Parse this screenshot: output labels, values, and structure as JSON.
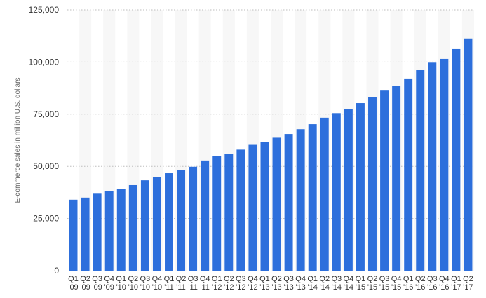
{
  "chart_data": {
    "type": "bar",
    "title": "",
    "xlabel": "",
    "ylabel": "E-commerce sales in million U.S. dollars",
    "ylim": [
      0,
      125000
    ],
    "yticks": [
      "0",
      "25,000",
      "50,000",
      "75,000",
      "100,000",
      "125,000"
    ],
    "ytick_values": [
      0,
      25000,
      50000,
      75000,
      100000,
      125000
    ],
    "grid": true,
    "bar_color": "#2d6fdc",
    "band_color": "#f7f7f7",
    "categories": [
      {
        "q": "Q1",
        "y": "'09"
      },
      {
        "q": "Q2",
        "y": "'09"
      },
      {
        "q": "Q3",
        "y": "'09"
      },
      {
        "q": "Q4",
        "y": "'09"
      },
      {
        "q": "Q1",
        "y": "'10"
      },
      {
        "q": "Q2",
        "y": "'10"
      },
      {
        "q": "Q3",
        "y": "'10"
      },
      {
        "q": "Q4",
        "y": "'10"
      },
      {
        "q": "Q1",
        "y": "'11"
      },
      {
        "q": "Q2",
        "y": "'11"
      },
      {
        "q": "Q3",
        "y": "'11"
      },
      {
        "q": "Q4",
        "y": "'11"
      },
      {
        "q": "Q1",
        "y": "'12"
      },
      {
        "q": "Q2",
        "y": "'12"
      },
      {
        "q": "Q3",
        "y": "'12"
      },
      {
        "q": "Q4",
        "y": "'12"
      },
      {
        "q": "Q1",
        "y": "'13"
      },
      {
        "q": "Q2",
        "y": "'13"
      },
      {
        "q": "Q3",
        "y": "'13"
      },
      {
        "q": "Q4",
        "y": "'13"
      },
      {
        "q": "Q1",
        "y": "'14"
      },
      {
        "q": "Q2",
        "y": "'14"
      },
      {
        "q": "Q3",
        "y": "'14"
      },
      {
        "q": "Q4",
        "y": "'14"
      },
      {
        "q": "Q1",
        "y": "'15"
      },
      {
        "q": "Q2",
        "y": "'15"
      },
      {
        "q": "Q3",
        "y": "'15"
      },
      {
        "q": "Q4",
        "y": "'15"
      },
      {
        "q": "Q1",
        "y": "'16"
      },
      {
        "q": "Q2",
        "y": "'16"
      },
      {
        "q": "Q3",
        "y": "'16"
      },
      {
        "q": "Q4",
        "y": "'16"
      },
      {
        "q": "Q1",
        "y": "'17"
      },
      {
        "q": "Q2",
        "y": "'17"
      }
    ],
    "values": [
      34000,
      35000,
      37200,
      38000,
      39000,
      41000,
      43300,
      44800,
      46700,
      48300,
      49800,
      52800,
      54800,
      56000,
      58000,
      60300,
      61800,
      63700,
      65500,
      67800,
      70200,
      73300,
      75500,
      77600,
      80300,
      83300,
      86300,
      88700,
      92100,
      96100,
      99700,
      101500,
      106200,
      111300
    ]
  }
}
